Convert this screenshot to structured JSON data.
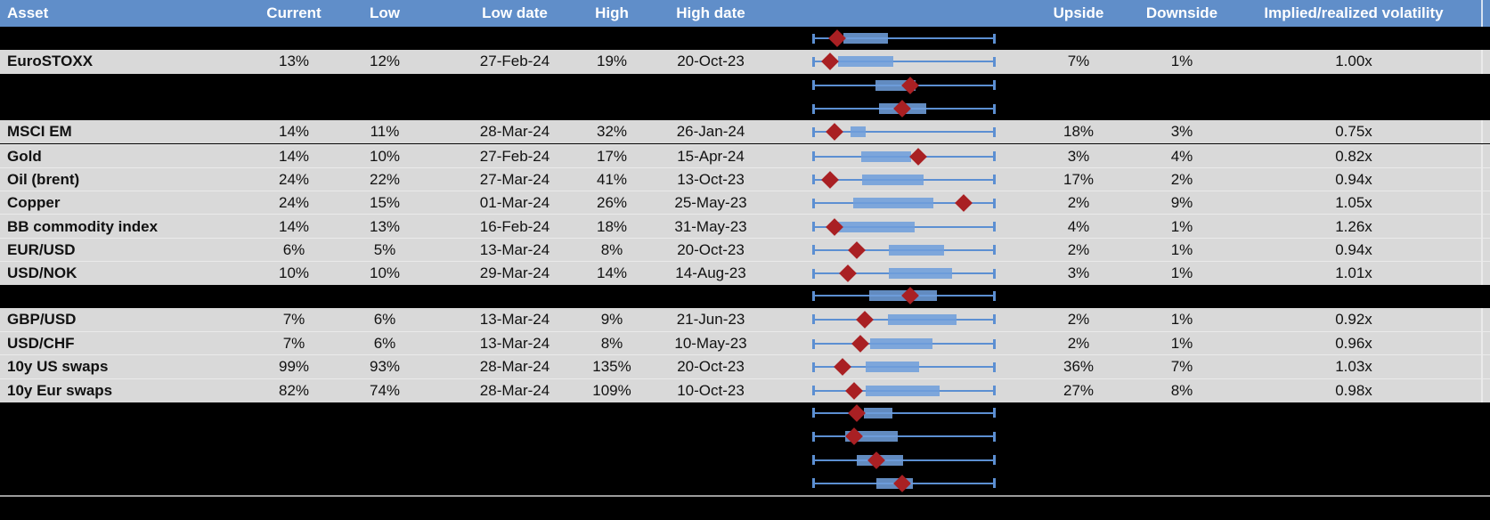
{
  "colors": {
    "header_bg": "#608EC9",
    "header_text": "#FFFFFF",
    "row_bg": "#D9D9D9",
    "hidden_row_bg": "#000000",
    "whisker_blue": "#5C8FD2",
    "box_blue": "#6F9EDB",
    "diamond_red": "#A92023",
    "divider_gray": "#9B9B9B"
  },
  "chart_data": {
    "type": "table",
    "title": "",
    "note": "Table of implied volatilities with embedded low-high range plots; box = inner range, diamond = current level; plot geometry given as percent of the low-to-high whisker span",
    "columns": [
      {
        "key": "asset",
        "label": "Asset"
      },
      {
        "key": "current",
        "label": "Current"
      },
      {
        "key": "low",
        "label": "Low"
      },
      {
        "key": "low_date",
        "label": "Low date"
      },
      {
        "key": "high",
        "label": "High"
      },
      {
        "key": "high_date",
        "label": "High date"
      },
      {
        "key": "plot",
        "label": ""
      },
      {
        "key": "upside",
        "label": "Upside"
      },
      {
        "key": "downside",
        "label": "Downside"
      },
      {
        "key": "ivol",
        "label": "Implied/realized volatility"
      }
    ],
    "rows": [
      {
        "type": "hidden",
        "asset": "",
        "current": "",
        "low": "",
        "low_date": "",
        "high": "",
        "high_date": "",
        "upside": "",
        "downside": "",
        "ivol": "",
        "plot": {
          "box_lo": 16.7,
          "box_hi": 41.2,
          "diamond": 13.2
        }
      },
      {
        "type": "data",
        "asset": "EuroSTOXX",
        "current": "13%",
        "low": "12%",
        "low_date": "27-Feb-24",
        "high": "19%",
        "high_date": "20-Oct-23",
        "upside": "7%",
        "downside": "1%",
        "ivol": "1.00x",
        "plot": {
          "box_lo": 13.7,
          "box_hi": 44.1,
          "diamond": 9.3
        }
      },
      {
        "type": "hidden",
        "asset": "",
        "current": "",
        "low": "",
        "low_date": "",
        "high": "",
        "high_date": "",
        "upside": "",
        "downside": "",
        "ivol": "",
        "plot": {
          "box_lo": 34.3,
          "box_hi": 56.4,
          "diamond": 53.4
        }
      },
      {
        "type": "hidden",
        "asset": "",
        "current": "",
        "low": "",
        "low_date": "",
        "high": "",
        "high_date": "",
        "upside": "",
        "downside": "",
        "ivol": "",
        "plot": {
          "box_lo": 36.3,
          "box_hi": 62.3,
          "diamond": 49.0
        }
      },
      {
        "type": "data",
        "asset": "MSCI EM",
        "current": "14%",
        "low": "11%",
        "low_date": "28-Mar-24",
        "high": "32%",
        "high_date": "26-Jan-24",
        "upside": "18%",
        "downside": "3%",
        "ivol": "0.75x",
        "plot": {
          "box_lo": 20.6,
          "box_hi": 28.9,
          "diamond": 11.8
        }
      },
      {
        "type": "data",
        "asset": "Gold",
        "current": "14%",
        "low": "10%",
        "low_date": "27-Feb-24",
        "high": "17%",
        "high_date": "15-Apr-24",
        "upside": "3%",
        "downside": "4%",
        "ivol": "0.82x",
        "plot": {
          "box_lo": 26.5,
          "box_hi": 53.9,
          "diamond": 57.8
        }
      },
      {
        "type": "data",
        "asset": "Oil (brent)",
        "current": "24%",
        "low": "22%",
        "low_date": "27-Mar-24",
        "high": "41%",
        "high_date": "13-Oct-23",
        "upside": "17%",
        "downside": "2%",
        "ivol": "0.94x",
        "plot": {
          "box_lo": 27.0,
          "box_hi": 60.8,
          "diamond": 9.3
        }
      },
      {
        "type": "data",
        "asset": "Copper",
        "current": "24%",
        "low": "15%",
        "low_date": "01-Mar-24",
        "high": "26%",
        "high_date": "25-May-23",
        "upside": "2%",
        "downside": "9%",
        "ivol": "1.05x",
        "plot": {
          "box_lo": 22.1,
          "box_hi": 66.2,
          "diamond": 82.8
        }
      },
      {
        "type": "data",
        "asset": "BB commodity index",
        "current": "14%",
        "low": "13%",
        "low_date": "16-Feb-24",
        "high": "18%",
        "high_date": "31-May-23",
        "upside": "4%",
        "downside": "1%",
        "ivol": "1.26x",
        "plot": {
          "box_lo": 13.2,
          "box_hi": 55.9,
          "diamond": 11.8
        }
      },
      {
        "type": "data",
        "asset": "EUR/USD",
        "current": "6%",
        "low": "5%",
        "low_date": "13-Mar-24",
        "high": "8%",
        "high_date": "20-Oct-23",
        "upside": "2%",
        "downside": "1%",
        "ivol": "0.94x",
        "plot": {
          "box_lo": 41.7,
          "box_hi": 72.1,
          "diamond": 24.0
        }
      },
      {
        "type": "data",
        "asset": "USD/NOK",
        "current": "10%",
        "low": "10%",
        "low_date": "29-Mar-24",
        "high": "14%",
        "high_date": "14-Aug-23",
        "upside": "3%",
        "downside": "1%",
        "ivol": "1.01x",
        "plot": {
          "box_lo": 41.7,
          "box_hi": 76.5,
          "diamond": 19.1
        }
      },
      {
        "type": "hidden",
        "asset": "",
        "current": "",
        "low": "",
        "low_date": "",
        "high": "",
        "high_date": "",
        "upside": "",
        "downside": "",
        "ivol": "",
        "plot": {
          "box_lo": 30.9,
          "box_hi": 68.1,
          "diamond": 53.4
        }
      },
      {
        "type": "data",
        "asset": "GBP/USD",
        "current": "7%",
        "low": "6%",
        "low_date": "13-Mar-24",
        "high": "9%",
        "high_date": "21-Jun-23",
        "upside": "2%",
        "downside": "1%",
        "ivol": "0.92x",
        "plot": {
          "box_lo": 41.2,
          "box_hi": 78.9,
          "diamond": 28.4
        }
      },
      {
        "type": "data",
        "asset": "USD/CHF",
        "current": "7%",
        "low": "6%",
        "low_date": "13-Mar-24",
        "high": "8%",
        "high_date": "10-May-23",
        "upside": "2%",
        "downside": "1%",
        "ivol": "0.96x",
        "plot": {
          "box_lo": 31.4,
          "box_hi": 65.7,
          "diamond": 26.0
        }
      },
      {
        "type": "data",
        "asset": "10y US swaps",
        "current": "99%",
        "low": "93%",
        "low_date": "28-Mar-24",
        "high": "135%",
        "high_date": "20-Oct-23",
        "upside": "36%",
        "downside": "7%",
        "ivol": "1.03x",
        "plot": {
          "box_lo": 28.9,
          "box_hi": 58.3,
          "diamond": 16.2
        }
      },
      {
        "type": "data",
        "asset": "10y Eur swaps",
        "current": "82%",
        "low": "74%",
        "low_date": "28-Mar-24",
        "high": "109%",
        "high_date": "10-Oct-23",
        "upside": "27%",
        "downside": "8%",
        "ivol": "0.98x",
        "plot": {
          "box_lo": 28.9,
          "box_hi": 69.6,
          "diamond": 22.5
        }
      },
      {
        "type": "hidden",
        "asset": "",
        "current": "",
        "low": "",
        "low_date": "",
        "high": "",
        "high_date": "",
        "upside": "",
        "downside": "",
        "ivol": "",
        "plot": {
          "box_lo": 27.9,
          "box_hi": 43.6,
          "diamond": 24.0
        }
      },
      {
        "type": "hidden",
        "asset": "",
        "current": "",
        "low": "",
        "low_date": "",
        "high": "",
        "high_date": "",
        "upside": "",
        "downside": "",
        "ivol": "",
        "plot": {
          "box_lo": 17.6,
          "box_hi": 46.6,
          "diamond": 22.5
        }
      },
      {
        "type": "hidden",
        "asset": "",
        "current": "",
        "low": "",
        "low_date": "",
        "high": "",
        "high_date": "",
        "upside": "",
        "downside": "",
        "ivol": "",
        "plot": {
          "box_lo": 24.0,
          "box_hi": 49.5,
          "diamond": 34.8
        }
      },
      {
        "type": "hidden",
        "asset": "",
        "current": "",
        "low": "",
        "low_date": "",
        "high": "",
        "high_date": "",
        "upside": "",
        "downside": "",
        "ivol": "",
        "plot": {
          "box_lo": 34.8,
          "box_hi": 54.9,
          "diamond": 49.0
        }
      }
    ]
  }
}
